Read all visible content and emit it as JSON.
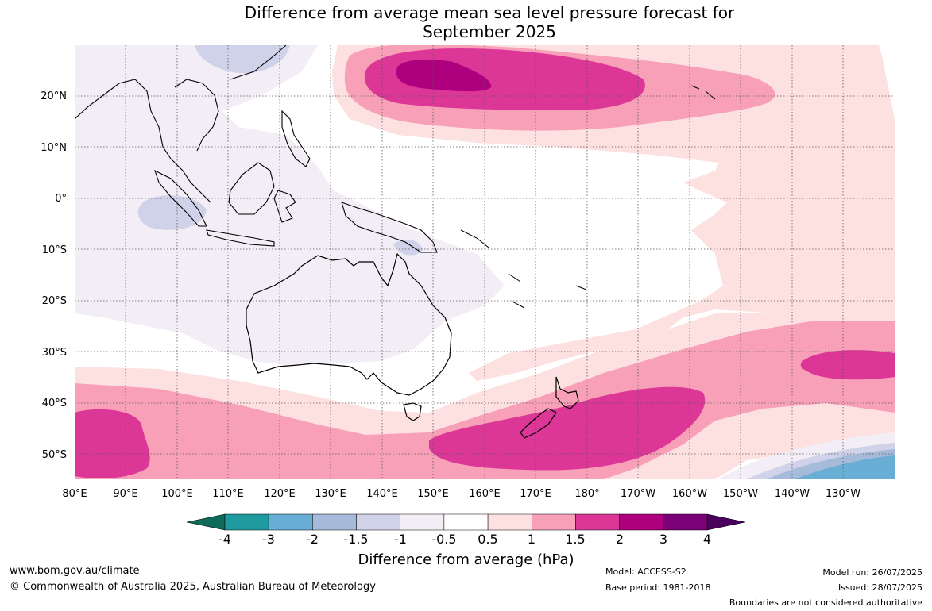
{
  "title_line1": "Difference from average mean sea level pressure forecast for",
  "title_line2": "September 2025",
  "lat_labels": [
    "20°N",
    "10°N",
    "0°",
    "10°S",
    "20°S",
    "30°S",
    "40°S",
    "50°S"
  ],
  "lon_labels": [
    "80°E",
    "90°E",
    "100°E",
    "110°E",
    "120°E",
    "130°E",
    "140°E",
    "150°E",
    "160°E",
    "170°E",
    "180°",
    "170°W",
    "160°W",
    "150°W",
    "140°W",
    "130°W"
  ],
  "colorbar": {
    "ticks": [
      "-4",
      "-3",
      "-2",
      "-1.5",
      "-1",
      "-0.5",
      "0.5",
      "1",
      "1.5",
      "2",
      "3",
      "4"
    ],
    "colors": [
      "#1f9a9e",
      "#68aed5",
      "#a6bbd9",
      "#cfd2e8",
      "#f3edf5",
      "#ffffff",
      "#fde0e0",
      "#f7a0b8",
      "#dc3797",
      "#ae007e",
      "#7a0176"
    ],
    "low_extend_color": "#0e6b5a",
    "high_extend_color": "#4a005c",
    "label": "Difference from average (hPa)"
  },
  "footer": {
    "site": "www.bom.gov.au/climate",
    "copyright": "© Commonwealth of Australia 2025, Australian Bureau of Meteorology",
    "model": "Model: ACCESS-S2",
    "base_period": "Base period: 1981-2018",
    "model_run": "Model run: 26/07/2025",
    "issued": "Issued: 28/07/2025",
    "boundaries": "Boundaries are not considered authoritative"
  }
}
